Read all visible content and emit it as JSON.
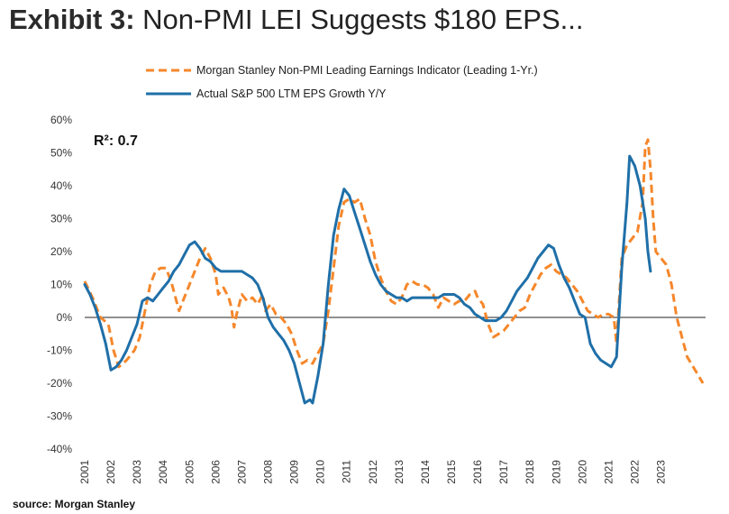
{
  "title": {
    "bold": "Exhibit 3:",
    "rest": " Non-PMI LEI Suggests $180 EPS..."
  },
  "source": "source: Morgan Stanley",
  "chart_data": {
    "type": "line",
    "title": "Exhibit 3: Non-PMI LEI Suggests $180 EPS...",
    "annotation": "R²: 0.7",
    "ylim": [
      -40,
      60
    ],
    "xlim": [
      2001,
      2024.7
    ],
    "yticks": [
      60,
      50,
      40,
      30,
      20,
      10,
      0,
      -10,
      -20,
      -30,
      -40
    ],
    "ytick_labels": [
      "60%",
      "50%",
      "40%",
      "30%",
      "20%",
      "10%",
      "0%",
      "-10%",
      "-20%",
      "-30%",
      "-40%"
    ],
    "xticks": [
      "2001",
      "2002",
      "2003",
      "2004",
      "2005",
      "2006",
      "2007",
      "2008",
      "2009",
      "2010",
      "2011",
      "2012",
      "2013",
      "2014",
      "2015",
      "2016",
      "2017",
      "2018",
      "2019",
      "2020",
      "2021",
      "2022",
      "2023"
    ],
    "legend_position": "top",
    "grid": false,
    "series": [
      {
        "name": "Morgan Stanley Non-PMI Leading Earnings Indicator (Leading 1-Yr.)",
        "color": "#f5872b",
        "style": "dashed",
        "points": [
          [
            2001.0,
            11
          ],
          [
            2001.3,
            6
          ],
          [
            2001.6,
            0
          ],
          [
            2001.9,
            -2
          ],
          [
            2002.1,
            -10
          ],
          [
            2002.3,
            -15
          ],
          [
            2002.6,
            -13
          ],
          [
            2002.9,
            -10
          ],
          [
            2003.1,
            -6
          ],
          [
            2003.3,
            2
          ],
          [
            2003.5,
            10
          ],
          [
            2003.7,
            14
          ],
          [
            2003.9,
            15
          ],
          [
            2004.1,
            15
          ],
          [
            2004.3,
            11
          ],
          [
            2004.5,
            5
          ],
          [
            2004.6,
            2
          ],
          [
            2004.8,
            6
          ],
          [
            2005.0,
            10
          ],
          [
            2005.2,
            14
          ],
          [
            2005.4,
            18
          ],
          [
            2005.6,
            21
          ],
          [
            2005.8,
            18
          ],
          [
            2006.0,
            13
          ],
          [
            2006.1,
            7
          ],
          [
            2006.3,
            9
          ],
          [
            2006.5,
            6
          ],
          [
            2006.6,
            3
          ],
          [
            2006.7,
            -3
          ],
          [
            2006.8,
            1
          ],
          [
            2007.0,
            7
          ],
          [
            2007.2,
            5
          ],
          [
            2007.4,
            6
          ],
          [
            2007.6,
            4
          ],
          [
            2007.8,
            7
          ],
          [
            2007.9,
            2
          ],
          [
            2008.1,
            4
          ],
          [
            2008.3,
            1
          ],
          [
            2008.5,
            0
          ],
          [
            2008.7,
            -2
          ],
          [
            2008.9,
            -5
          ],
          [
            2009.1,
            -10
          ],
          [
            2009.3,
            -14
          ],
          [
            2009.5,
            -13
          ],
          [
            2009.7,
            -14
          ],
          [
            2009.9,
            -11
          ],
          [
            2010.1,
            -8
          ],
          [
            2010.3,
            2
          ],
          [
            2010.5,
            15
          ],
          [
            2010.7,
            28
          ],
          [
            2010.9,
            35
          ],
          [
            2011.1,
            36
          ],
          [
            2011.3,
            35
          ],
          [
            2011.5,
            36
          ],
          [
            2011.7,
            30
          ],
          [
            2011.9,
            25
          ],
          [
            2012.1,
            17
          ],
          [
            2012.3,
            12
          ],
          [
            2012.5,
            8
          ],
          [
            2012.7,
            5
          ],
          [
            2012.9,
            4
          ],
          [
            2013.1,
            6
          ],
          [
            2013.3,
            10
          ],
          [
            2013.5,
            11
          ],
          [
            2013.7,
            10
          ],
          [
            2013.9,
            10
          ],
          [
            2014.1,
            9
          ],
          [
            2014.3,
            7
          ],
          [
            2014.5,
            3
          ],
          [
            2014.7,
            6
          ],
          [
            2014.9,
            5
          ],
          [
            2015.1,
            4
          ],
          [
            2015.3,
            5
          ],
          [
            2015.5,
            5
          ],
          [
            2015.7,
            7
          ],
          [
            2015.9,
            8
          ],
          [
            2016.0,
            6
          ],
          [
            2016.2,
            4
          ],
          [
            2016.4,
            -2
          ],
          [
            2016.6,
            -6
          ],
          [
            2016.8,
            -5
          ],
          [
            2017.0,
            -4
          ],
          [
            2017.2,
            -2
          ],
          [
            2017.4,
            0
          ],
          [
            2017.6,
            2
          ],
          [
            2017.8,
            3
          ],
          [
            2018.0,
            7
          ],
          [
            2018.2,
            10
          ],
          [
            2018.4,
            13
          ],
          [
            2018.6,
            15
          ],
          [
            2018.8,
            16
          ],
          [
            2019.0,
            14
          ],
          [
            2019.2,
            13
          ],
          [
            2019.4,
            12
          ],
          [
            2019.6,
            10
          ],
          [
            2019.8,
            8
          ],
          [
            2020.0,
            5
          ],
          [
            2020.2,
            2
          ],
          [
            2020.4,
            1
          ],
          [
            2020.6,
            0
          ],
          [
            2020.8,
            1
          ],
          [
            2021.0,
            1
          ],
          [
            2021.2,
            0
          ],
          [
            2021.3,
            -8
          ],
          [
            2021.5,
            18
          ],
          [
            2021.7,
            22
          ],
          [
            2021.9,
            24
          ],
          [
            2022.1,
            26
          ],
          [
            2022.3,
            35
          ],
          [
            2022.4,
            52
          ],
          [
            2022.5,
            54
          ],
          [
            2022.6,
            45
          ],
          [
            2022.7,
            30
          ],
          [
            2022.8,
            20
          ],
          [
            2023.0,
            18
          ],
          [
            2023.2,
            16
          ],
          [
            2023.4,
            10
          ],
          [
            2023.6,
            0
          ],
          [
            2023.8,
            -6
          ],
          [
            2024.0,
            -12
          ],
          [
            2024.3,
            -16
          ],
          [
            2024.6,
            -20
          ]
        ]
      },
      {
        "name": "Actual S&P 500 LTM EPS Growth Y/Y",
        "color": "#1f6fa8",
        "style": "solid",
        "points": [
          [
            2001.0,
            10
          ],
          [
            2001.2,
            7
          ],
          [
            2001.4,
            3
          ],
          [
            2001.6,
            -2
          ],
          [
            2001.8,
            -8
          ],
          [
            2002.0,
            -16
          ],
          [
            2002.2,
            -15
          ],
          [
            2002.4,
            -13
          ],
          [
            2002.6,
            -10
          ],
          [
            2002.8,
            -6
          ],
          [
            2003.0,
            -2
          ],
          [
            2003.2,
            5
          ],
          [
            2003.4,
            6
          ],
          [
            2003.6,
            5
          ],
          [
            2003.8,
            7
          ],
          [
            2004.0,
            9
          ],
          [
            2004.2,
            11
          ],
          [
            2004.4,
            14
          ],
          [
            2004.6,
            16
          ],
          [
            2004.8,
            19
          ],
          [
            2005.0,
            22
          ],
          [
            2005.2,
            23
          ],
          [
            2005.4,
            21
          ],
          [
            2005.6,
            18
          ],
          [
            2005.8,
            17
          ],
          [
            2006.0,
            15
          ],
          [
            2006.2,
            14
          ],
          [
            2006.4,
            14
          ],
          [
            2006.6,
            14
          ],
          [
            2006.8,
            14
          ],
          [
            2007.0,
            14
          ],
          [
            2007.2,
            13
          ],
          [
            2007.4,
            12
          ],
          [
            2007.6,
            10
          ],
          [
            2007.8,
            6
          ],
          [
            2008.0,
            0
          ],
          [
            2008.2,
            -3
          ],
          [
            2008.4,
            -5
          ],
          [
            2008.6,
            -7
          ],
          [
            2008.8,
            -10
          ],
          [
            2009.0,
            -14
          ],
          [
            2009.2,
            -20
          ],
          [
            2009.4,
            -26
          ],
          [
            2009.6,
            -25
          ],
          [
            2009.7,
            -26
          ],
          [
            2009.9,
            -18
          ],
          [
            2010.1,
            -8
          ],
          [
            2010.3,
            10
          ],
          [
            2010.5,
            25
          ],
          [
            2010.7,
            33
          ],
          [
            2010.9,
            39
          ],
          [
            2011.1,
            37
          ],
          [
            2011.3,
            32
          ],
          [
            2011.5,
            27
          ],
          [
            2011.7,
            22
          ],
          [
            2011.9,
            17
          ],
          [
            2012.1,
            13
          ],
          [
            2012.3,
            10
          ],
          [
            2012.5,
            8
          ],
          [
            2012.7,
            7
          ],
          [
            2012.9,
            6
          ],
          [
            2013.1,
            6
          ],
          [
            2013.3,
            5
          ],
          [
            2013.5,
            6
          ],
          [
            2013.7,
            6
          ],
          [
            2013.9,
            6
          ],
          [
            2014.1,
            6
          ],
          [
            2014.3,
            6
          ],
          [
            2014.5,
            6
          ],
          [
            2014.7,
            7
          ],
          [
            2014.9,
            7
          ],
          [
            2015.1,
            7
          ],
          [
            2015.3,
            6
          ],
          [
            2015.5,
            4
          ],
          [
            2015.7,
            3
          ],
          [
            2015.9,
            1
          ],
          [
            2016.1,
            0
          ],
          [
            2016.3,
            -1
          ],
          [
            2016.5,
            -1
          ],
          [
            2016.7,
            -1
          ],
          [
            2016.9,
            0
          ],
          [
            2017.1,
            2
          ],
          [
            2017.3,
            5
          ],
          [
            2017.5,
            8
          ],
          [
            2017.7,
            10
          ],
          [
            2017.9,
            12
          ],
          [
            2018.1,
            15
          ],
          [
            2018.3,
            18
          ],
          [
            2018.5,
            20
          ],
          [
            2018.7,
            22
          ],
          [
            2018.9,
            21
          ],
          [
            2019.1,
            16
          ],
          [
            2019.3,
            12
          ],
          [
            2019.5,
            9
          ],
          [
            2019.7,
            5
          ],
          [
            2019.9,
            1
          ],
          [
            2020.1,
            0
          ],
          [
            2020.3,
            -8
          ],
          [
            2020.5,
            -11
          ],
          [
            2020.7,
            -13
          ],
          [
            2020.9,
            -14
          ],
          [
            2021.1,
            -15
          ],
          [
            2021.3,
            -12
          ],
          [
            2021.5,
            15
          ],
          [
            2021.7,
            35
          ],
          [
            2021.8,
            49
          ],
          [
            2022.0,
            46
          ],
          [
            2022.2,
            40
          ],
          [
            2022.4,
            30
          ],
          [
            2022.5,
            20
          ],
          [
            2022.6,
            14
          ]
        ]
      }
    ]
  }
}
